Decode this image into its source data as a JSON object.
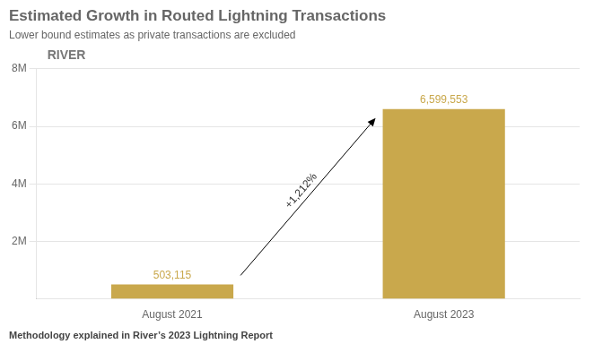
{
  "chart_data": {
    "type": "bar",
    "title": "Estimated Growth in Routed Lightning Transactions",
    "subtitle": "Lower bound estimates as private transactions are excluded",
    "footnote": "Methodology explained in River’s 2023 Lightning Report",
    "categories": [
      "August 2021",
      "August 2023"
    ],
    "values": [
      503115,
      6599553
    ],
    "value_labels": [
      "503,115",
      "6,599,553"
    ],
    "data_labels": true,
    "color": "#C9A84C",
    "ylim": [
      0,
      8000000
    ],
    "yticks": [
      {
        "value": 2000000,
        "label": "2M"
      },
      {
        "value": 4000000,
        "label": "4M"
      },
      {
        "value": 6000000,
        "label": "6M"
      },
      {
        "value": 8000000,
        "label": "8M"
      }
    ],
    "grid": true,
    "annotations": [
      {
        "text": "+1,212%",
        "from": 0,
        "to": 1
      },
      {
        "text": "RIVER"
      }
    ]
  }
}
